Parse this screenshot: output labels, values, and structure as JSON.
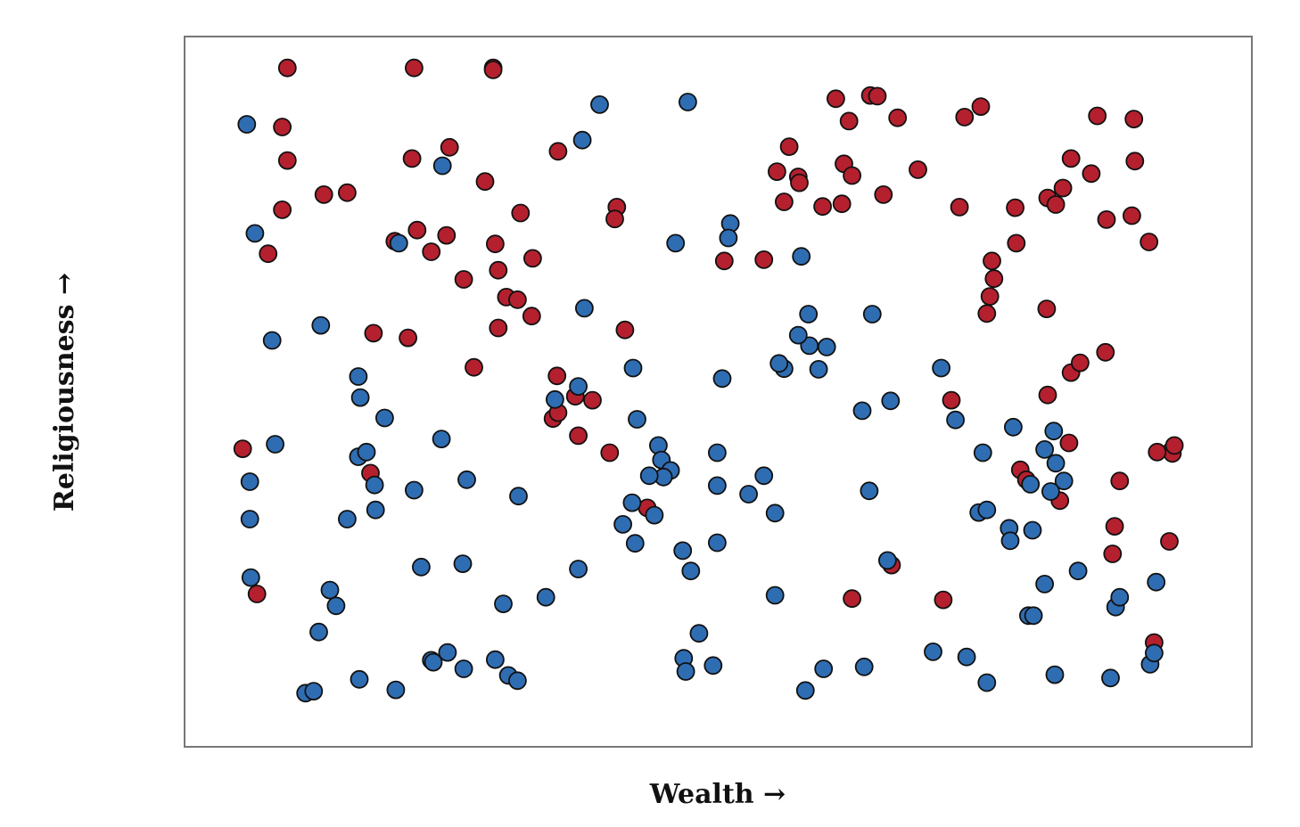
{
  "chart_data": {
    "type": "scatter",
    "xlabel": "Wealth →",
    "ylabel": "Religiousness →",
    "xlim": [
      0,
      1
    ],
    "ylim": [
      0,
      1
    ],
    "grid": false,
    "legend": "none",
    "colors": {
      "red": "#b5202e",
      "blue": "#2f6db3"
    },
    "series": [
      {
        "color": "red",
        "points": [
          [
            0.075,
            0.993
          ],
          [
            0.07,
            0.903
          ],
          [
            0.075,
            0.852
          ],
          [
            0.07,
            0.777
          ],
          [
            0.056,
            0.71
          ],
          [
            0.111,
            0.8
          ],
          [
            0.134,
            0.803
          ],
          [
            0.2,
            0.993
          ],
          [
            0.278,
            0.993
          ],
          [
            0.278,
            0.99
          ],
          [
            0.198,
            0.855
          ],
          [
            0.235,
            0.872
          ],
          [
            0.27,
            0.82
          ],
          [
            0.28,
            0.725
          ],
          [
            0.305,
            0.772
          ],
          [
            0.181,
            0.729
          ],
          [
            0.203,
            0.746
          ],
          [
            0.217,
            0.713
          ],
          [
            0.232,
            0.738
          ],
          [
            0.249,
            0.671
          ],
          [
            0.283,
            0.685
          ],
          [
            0.317,
            0.703
          ],
          [
            0.291,
            0.644
          ],
          [
            0.302,
            0.64
          ],
          [
            0.316,
            0.615
          ],
          [
            0.283,
            0.597
          ],
          [
            0.16,
            0.589
          ],
          [
            0.194,
            0.582
          ],
          [
            0.259,
            0.537
          ],
          [
            0.342,
            0.866
          ],
          [
            0.4,
            0.781
          ],
          [
            0.398,
            0.763
          ],
          [
            0.57,
            0.873
          ],
          [
            0.506,
            0.699
          ],
          [
            0.545,
            0.701
          ],
          [
            0.408,
            0.594
          ],
          [
            0.341,
            0.524
          ],
          [
            0.359,
            0.493
          ],
          [
            0.376,
            0.487
          ],
          [
            0.337,
            0.459
          ],
          [
            0.342,
            0.468
          ],
          [
            0.362,
            0.433
          ],
          [
            0.393,
            0.407
          ],
          [
            0.157,
            0.376
          ],
          [
            0.031,
            0.413
          ],
          [
            0.045,
            0.192
          ],
          [
            0.43,
            0.323
          ],
          [
            0.616,
            0.946
          ],
          [
            0.629,
            0.912
          ],
          [
            0.65,
            0.951
          ],
          [
            0.657,
            0.95
          ],
          [
            0.677,
            0.917
          ],
          [
            0.558,
            0.835
          ],
          [
            0.579,
            0.827
          ],
          [
            0.58,
            0.818
          ],
          [
            0.565,
            0.789
          ],
          [
            0.603,
            0.782
          ],
          [
            0.622,
            0.786
          ],
          [
            0.624,
            0.847
          ],
          [
            0.632,
            0.829
          ],
          [
            0.663,
            0.8
          ],
          [
            0.697,
            0.838
          ],
          [
            0.743,
            0.918
          ],
          [
            0.759,
            0.934
          ],
          [
            0.738,
            0.781
          ],
          [
            0.793,
            0.78
          ],
          [
            0.825,
            0.795
          ],
          [
            0.833,
            0.785
          ],
          [
            0.84,
            0.81
          ],
          [
            0.794,
            0.726
          ],
          [
            0.77,
            0.699
          ],
          [
            0.772,
            0.672
          ],
          [
            0.768,
            0.645
          ],
          [
            0.765,
            0.619
          ],
          [
            0.824,
            0.626
          ],
          [
            0.848,
            0.855
          ],
          [
            0.874,
            0.92
          ],
          [
            0.91,
            0.915
          ],
          [
            0.868,
            0.832
          ],
          [
            0.911,
            0.851
          ],
          [
            0.883,
            0.762
          ],
          [
            0.908,
            0.768
          ],
          [
            0.925,
            0.728
          ],
          [
            0.882,
            0.56
          ],
          [
            0.848,
            0.529
          ],
          [
            0.73,
            0.487
          ],
          [
            0.825,
            0.495
          ],
          [
            0.846,
            0.422
          ],
          [
            0.798,
            0.381
          ],
          [
            0.804,
            0.366
          ],
          [
            0.837,
            0.334
          ],
          [
            0.857,
            0.544
          ],
          [
            0.896,
            0.364
          ],
          [
            0.891,
            0.295
          ],
          [
            0.889,
            0.253
          ],
          [
            0.947,
            0.41
          ],
          [
            0.948,
            0.406
          ],
          [
            0.933,
            0.408
          ],
          [
            0.95,
            0.418
          ],
          [
            0.945,
            0.272
          ],
          [
            0.671,
            0.236
          ],
          [
            0.632,
            0.185
          ],
          [
            0.722,
            0.183
          ],
          [
            0.93,
            0.118
          ]
        ]
      },
      {
        "color": "blue",
        "points": [
          [
            0.035,
            0.907
          ],
          [
            0.043,
            0.741
          ],
          [
            0.06,
            0.578
          ],
          [
            0.108,
            0.601
          ],
          [
            0.145,
            0.523
          ],
          [
            0.147,
            0.491
          ],
          [
            0.171,
            0.46
          ],
          [
            0.134,
            0.306
          ],
          [
            0.039,
            0.217
          ],
          [
            0.117,
            0.198
          ],
          [
            0.185,
            0.726
          ],
          [
            0.383,
            0.937
          ],
          [
            0.366,
            0.883
          ],
          [
            0.228,
            0.844
          ],
          [
            0.47,
            0.941
          ],
          [
            0.512,
            0.756
          ],
          [
            0.458,
            0.726
          ],
          [
            0.51,
            0.734
          ],
          [
            0.582,
            0.706
          ],
          [
            0.368,
            0.627
          ],
          [
            0.589,
            0.618
          ],
          [
            0.59,
            0.57
          ],
          [
            0.642,
            0.471
          ],
          [
            0.67,
            0.486
          ],
          [
            0.599,
            0.534
          ],
          [
            0.504,
            0.52
          ],
          [
            0.565,
            0.535
          ],
          [
            0.56,
            0.543
          ],
          [
            0.652,
            0.618
          ],
          [
            0.579,
            0.586
          ],
          [
            0.607,
            0.568
          ],
          [
            0.362,
            0.508
          ],
          [
            0.038,
            0.363
          ],
          [
            0.063,
            0.42
          ],
          [
            0.162,
            0.32
          ],
          [
            0.145,
            0.401
          ],
          [
            0.2,
            0.35
          ],
          [
            0.252,
            0.366
          ],
          [
            0.303,
            0.341
          ],
          [
            0.038,
            0.306
          ],
          [
            0.153,
            0.408
          ],
          [
            0.161,
            0.358
          ],
          [
            0.227,
            0.428
          ],
          [
            0.339,
            0.488
          ],
          [
            0.416,
            0.536
          ],
          [
            0.42,
            0.458
          ],
          [
            0.441,
            0.418
          ],
          [
            0.444,
            0.396
          ],
          [
            0.453,
            0.38
          ],
          [
            0.446,
            0.37
          ],
          [
            0.432,
            0.372
          ],
          [
            0.437,
            0.312
          ],
          [
            0.406,
            0.298
          ],
          [
            0.499,
            0.407
          ],
          [
            0.499,
            0.357
          ],
          [
            0.545,
            0.372
          ],
          [
            0.53,
            0.344
          ],
          [
            0.465,
            0.258
          ],
          [
            0.415,
            0.331
          ],
          [
            0.418,
            0.269
          ],
          [
            0.556,
            0.315
          ],
          [
            0.649,
            0.349
          ],
          [
            0.734,
            0.457
          ],
          [
            0.72,
            0.536
          ],
          [
            0.761,
            0.407
          ],
          [
            0.757,
            0.316
          ],
          [
            0.791,
            0.446
          ],
          [
            0.831,
            0.44
          ],
          [
            0.765,
            0.32
          ],
          [
            0.808,
            0.359
          ],
          [
            0.787,
            0.292
          ],
          [
            0.788,
            0.273
          ],
          [
            0.81,
            0.289
          ],
          [
            0.822,
            0.412
          ],
          [
            0.833,
            0.391
          ],
          [
            0.841,
            0.364
          ],
          [
            0.828,
            0.348
          ],
          [
            0.362,
            0.23
          ],
          [
            0.288,
            0.177
          ],
          [
            0.33,
            0.187
          ],
          [
            0.248,
            0.238
          ],
          [
            0.207,
            0.233
          ],
          [
            0.217,
            0.091
          ],
          [
            0.28,
            0.092
          ],
          [
            0.219,
            0.088
          ],
          [
            0.182,
            0.046
          ],
          [
            0.093,
            0.041
          ],
          [
            0.101,
            0.044
          ],
          [
            0.146,
            0.062
          ],
          [
            0.123,
            0.174
          ],
          [
            0.106,
            0.134
          ],
          [
            0.233,
            0.103
          ],
          [
            0.249,
            0.078
          ],
          [
            0.293,
            0.068
          ],
          [
            0.302,
            0.06
          ],
          [
            0.466,
            0.094
          ],
          [
            0.481,
            0.132
          ],
          [
            0.473,
            0.227
          ],
          [
            0.499,
            0.27
          ],
          [
            0.556,
            0.19
          ],
          [
            0.667,
            0.243
          ],
          [
            0.806,
            0.159
          ],
          [
            0.822,
            0.207
          ],
          [
            0.855,
            0.227
          ],
          [
            0.892,
            0.172
          ],
          [
            0.896,
            0.187
          ],
          [
            0.932,
            0.21
          ],
          [
            0.926,
            0.085
          ],
          [
            0.811,
            0.159
          ],
          [
            0.712,
            0.104
          ],
          [
            0.644,
            0.081
          ],
          [
            0.604,
            0.078
          ],
          [
            0.468,
            0.074
          ],
          [
            0.495,
            0.083
          ],
          [
            0.745,
            0.096
          ],
          [
            0.765,
            0.057
          ],
          [
            0.832,
            0.069
          ],
          [
            0.887,
            0.064
          ],
          [
            0.93,
            0.102
          ],
          [
            0.586,
            0.045
          ]
        ]
      }
    ]
  }
}
